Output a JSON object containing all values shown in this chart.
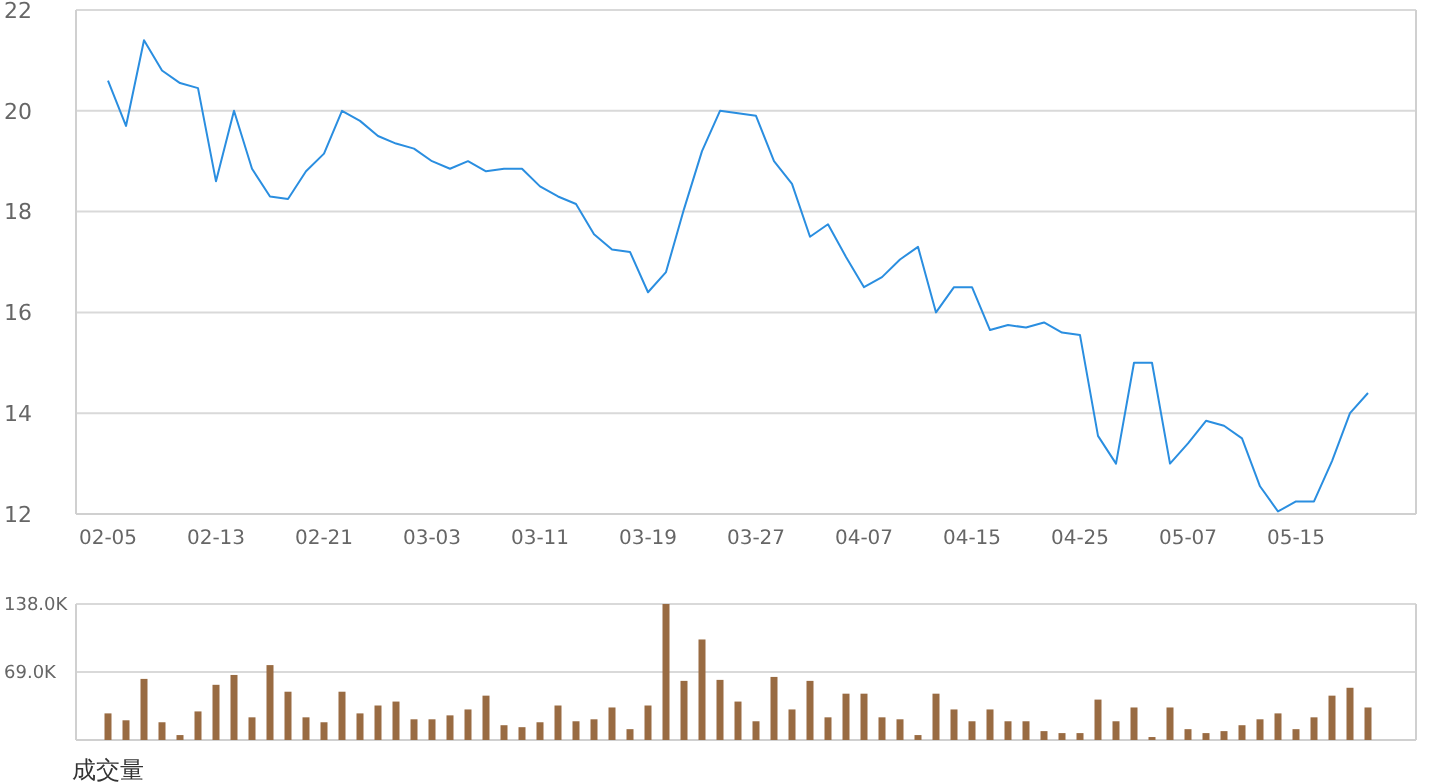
{
  "chart_data": [
    {
      "type": "line",
      "categories": [
        "02-05",
        null,
        null,
        null,
        null,
        null,
        "02-13",
        null,
        null,
        null,
        null,
        null,
        "02-21",
        null,
        null,
        null,
        null,
        null,
        "03-03",
        null,
        null,
        null,
        null,
        null,
        "03-11",
        null,
        null,
        null,
        null,
        null,
        "03-19",
        null,
        null,
        null,
        null,
        null,
        "03-27",
        null,
        null,
        null,
        null,
        null,
        "04-07",
        null,
        null,
        null,
        null,
        null,
        "04-15",
        null,
        null,
        null,
        null,
        null,
        "04-25",
        null,
        null,
        null,
        null,
        null,
        "05-07",
        null,
        null,
        null,
        null,
        null,
        "05-15",
        null,
        null,
        null,
        null
      ],
      "values": [
        20.6,
        19.7,
        21.4,
        20.8,
        20.55,
        20.45,
        18.6,
        20.0,
        18.85,
        18.3,
        18.25,
        18.8,
        19.15,
        20.0,
        19.8,
        19.5,
        19.35,
        19.25,
        19.0,
        18.85,
        19.0,
        18.8,
        18.85,
        18.85,
        18.5,
        18.3,
        18.15,
        17.55,
        17.25,
        17.2,
        16.4,
        16.8,
        18.05,
        19.2,
        20.0,
        19.95,
        19.9,
        19.0,
        18.55,
        17.5,
        17.75,
        17.1,
        16.5,
        16.7,
        17.05,
        17.3,
        16.0,
        16.5,
        16.5,
        15.65,
        15.75,
        15.7,
        15.8,
        15.6,
        15.55,
        13.55,
        13.0,
        15.0,
        15.0,
        13.0,
        13.4,
        13.85,
        13.75,
        13.5,
        12.55,
        12.05,
        12.25,
        12.25,
        13.05,
        14.0,
        14.4
      ],
      "color": "#2a8ee0",
      "ylim": [
        12,
        22
      ],
      "yticks": [
        12,
        14,
        16,
        18,
        20,
        22
      ],
      "grid": "y"
    },
    {
      "type": "bar",
      "title": "成交量",
      "categories": [
        null,
        null,
        null,
        null,
        null,
        null,
        null,
        null,
        null,
        null,
        null,
        null,
        null,
        null,
        null,
        null,
        null,
        null,
        null,
        null,
        null,
        null,
        null,
        null,
        null,
        null,
        null,
        null,
        null,
        null,
        null,
        null,
        null,
        null,
        null,
        null,
        null,
        null,
        null,
        null,
        null,
        null,
        null,
        null,
        null,
        null,
        null,
        null,
        null,
        null,
        null,
        null,
        null,
        null,
        null,
        null,
        null,
        null,
        null,
        null,
        null,
        null,
        null,
        null,
        null,
        null,
        null,
        null,
        null,
        null,
        null
      ],
      "values": [
        27,
        20,
        62,
        18,
        5,
        29,
        56,
        66,
        23,
        76,
        49,
        23,
        18,
        49,
        27,
        35,
        39,
        21,
        21,
        25,
        31,
        45,
        15,
        13,
        18,
        35,
        19,
        21,
        33,
        11,
        35,
        138,
        60,
        102,
        61,
        39,
        19,
        64,
        31,
        60,
        23,
        47,
        47,
        23,
        21,
        5,
        47,
        31,
        19,
        31,
        19,
        19,
        9,
        7,
        7,
        41,
        19,
        33,
        3,
        33,
        11,
        7,
        9,
        15,
        21,
        27,
        11,
        23,
        45,
        53,
        33
      ],
      "color": "#996b42",
      "ylim": [
        0,
        138
      ],
      "yticks": [
        {
          "value": 69,
          "label": "69.0K"
        },
        {
          "value": 138,
          "label": "138.0K"
        }
      ],
      "grid": "y"
    }
  ]
}
